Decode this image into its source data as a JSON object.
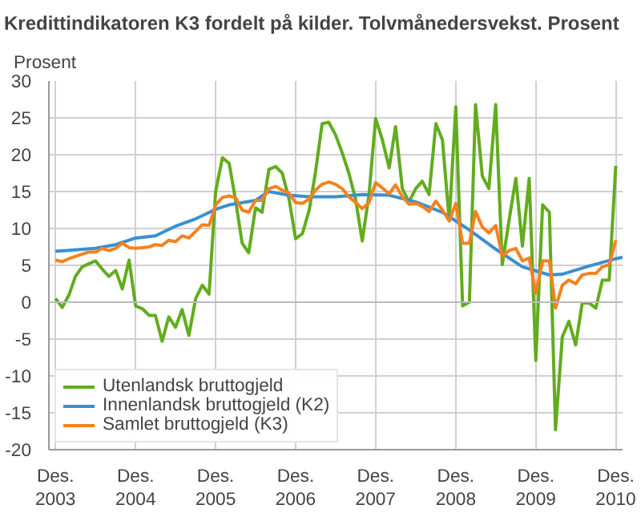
{
  "chart_data": {
    "type": "line",
    "title": "Kredittindikatoren K3 fordelt på kilder. Tolvmånedersvekst. Prosent",
    "ylabel": "Prosent",
    "x": [
      "2003-12",
      "2004-01",
      "2004-02",
      "2004-03",
      "2004-04",
      "2004-05",
      "2004-06",
      "2004-07",
      "2004-08",
      "2004-09",
      "2004-10",
      "2004-11",
      "2004-12",
      "2005-01",
      "2005-02",
      "2005-03",
      "2005-04",
      "2005-05",
      "2005-06",
      "2005-07",
      "2005-08",
      "2005-09",
      "2005-10",
      "2005-11",
      "2005-12",
      "2006-01",
      "2006-02",
      "2006-03",
      "2006-04",
      "2006-05",
      "2006-06",
      "2006-07",
      "2006-08",
      "2006-09",
      "2006-10",
      "2006-11",
      "2006-12",
      "2007-01",
      "2007-02",
      "2007-03",
      "2007-04",
      "2007-05",
      "2007-06",
      "2007-07",
      "2007-08",
      "2007-09",
      "2007-10",
      "2007-11",
      "2007-12",
      "2008-01",
      "2008-02",
      "2008-03",
      "2008-04",
      "2008-05",
      "2008-06",
      "2008-07",
      "2008-08",
      "2008-09",
      "2008-10",
      "2008-11",
      "2008-12",
      "2009-01",
      "2009-02",
      "2009-03",
      "2009-04",
      "2009-05",
      "2009-06",
      "2009-07",
      "2009-08",
      "2009-09",
      "2009-10",
      "2009-11",
      "2009-12",
      "2010-01",
      "2010-02",
      "2010-03",
      "2010-04",
      "2010-05",
      "2010-06",
      "2010-07",
      "2010-08",
      "2010-09",
      "2010-10",
      "2010-11",
      "2010-12"
    ],
    "series": [
      {
        "name": "Utenlandsk bruttogjeld",
        "color": "#62ac1e",
        "values": [
          0.5,
          -0.7,
          1.0,
          3.5,
          4.8,
          5.2,
          5.6,
          4.5,
          3.5,
          4.3,
          1.8,
          5.7,
          -0.5,
          -0.9,
          -1.8,
          -1.8,
          -5.3,
          -2.0,
          -3.4,
          -1.0,
          -4.5,
          0.5,
          2.3,
          1.1,
          15.0,
          19.6,
          18.8,
          14.0,
          8.0,
          6.7,
          12.8,
          12.2,
          18.0,
          18.4,
          17.5,
          14.0,
          8.6,
          9.3,
          12.5,
          17.5,
          24.2,
          24.4,
          22.7,
          20.3,
          17.5,
          13.9,
          8.3,
          14.6,
          24.9,
          22.0,
          18.2,
          23.8,
          15.4,
          13.6,
          15.4,
          16.4,
          14.6,
          24.2,
          22.0,
          11.1,
          26.5,
          -0.5,
          0,
          26.8,
          17.1,
          15.4,
          26.8,
          5.1,
          11.1,
          16.8,
          7.6,
          16.8,
          -7.9,
          13.2,
          12.2,
          -17.3,
          -4.7,
          -2.6,
          -5.8,
          -0.1,
          -0.1,
          -0.8,
          3.0,
          3.0,
          18.5
        ]
      },
      {
        "name": "Innenlandsk bruttogjeld (K2)",
        "color": "#3a8fd0",
        "x": [
          "2003-12",
          "2004-03",
          "2004-06",
          "2004-09",
          "2004-12",
          "2005-03",
          "2005-06",
          "2005-09",
          "2005-12",
          "2006-02",
          "2006-06",
          "2006-08",
          "2006-11",
          "2007-02",
          "2007-06",
          "2007-10",
          "2008-02",
          "2008-06",
          "2008-10",
          "2009-02",
          "2009-06",
          "2009-10",
          "2010-02",
          "2010-04",
          "2010-08",
          "2010-12",
          "2011-01"
        ],
        "values": [
          6.9,
          7.1,
          7.3,
          7.8,
          8.7,
          9.0,
          10.3,
          11.3,
          12.6,
          13.2,
          13.8,
          15.0,
          14.5,
          14.3,
          14.3,
          14.6,
          14.5,
          13.6,
          12.2,
          9.8,
          7.2,
          4.8,
          3.7,
          3.8,
          4.9,
          5.9,
          6.1
        ]
      },
      {
        "name": "Samlet bruttogjeld (K3)",
        "color": "#f5821f",
        "values": [
          5.7,
          5.5,
          5.9,
          6.2,
          6.5,
          6.8,
          6.8,
          7.3,
          7.0,
          7.3,
          8.0,
          7.4,
          7.3,
          7.4,
          7.5,
          7.8,
          7.7,
          8.4,
          8.2,
          9.0,
          8.7,
          9.6,
          10.5,
          10.4,
          13.2,
          14.2,
          14.4,
          14.2,
          12.5,
          12.2,
          13.8,
          13.8,
          15.4,
          15.7,
          15.2,
          14.8,
          13.5,
          13.4,
          14.0,
          15.2,
          16.0,
          16.3,
          16.0,
          15.4,
          14.3,
          13.5,
          12.7,
          13.5,
          16.2,
          15.5,
          14.7,
          15.9,
          14.3,
          13.3,
          13.4,
          13.0,
          12.3,
          13.7,
          12.5,
          11.0,
          13.4,
          8.0,
          8.0,
          12.3,
          10.2,
          9.4,
          10.4,
          6.2,
          7.0,
          7.3,
          5.6,
          6.0,
          1.2,
          5.6,
          5.6,
          -0.8,
          2.3,
          3.0,
          2.5,
          3.7,
          3.9,
          3.9,
          4.8,
          5.1,
          8.4
        ]
      }
    ],
    "xlim": [
      "2003-11",
      "2011-01"
    ],
    "xticks": [
      {
        "value": "2003-12",
        "label": "Des.\n2003"
      },
      {
        "value": "2004-12",
        "label": "Des.\n2004"
      },
      {
        "value": "2005-12",
        "label": "Des.\n2005"
      },
      {
        "value": "2006-12",
        "label": "Des.\n2006"
      },
      {
        "value": "2007-12",
        "label": "Des.\n2007"
      },
      {
        "value": "2008-12",
        "label": "Des.\n2008"
      },
      {
        "value": "2009-12",
        "label": "Des.\n2009"
      },
      {
        "value": "2010-12",
        "label": "Des.\n2010"
      }
    ],
    "ylim": [
      -20,
      30
    ],
    "yticks": [
      -20,
      -15,
      -10,
      -5,
      0,
      5,
      10,
      15,
      20,
      25,
      30
    ],
    "grid": true,
    "legend": "bottom left"
  }
}
